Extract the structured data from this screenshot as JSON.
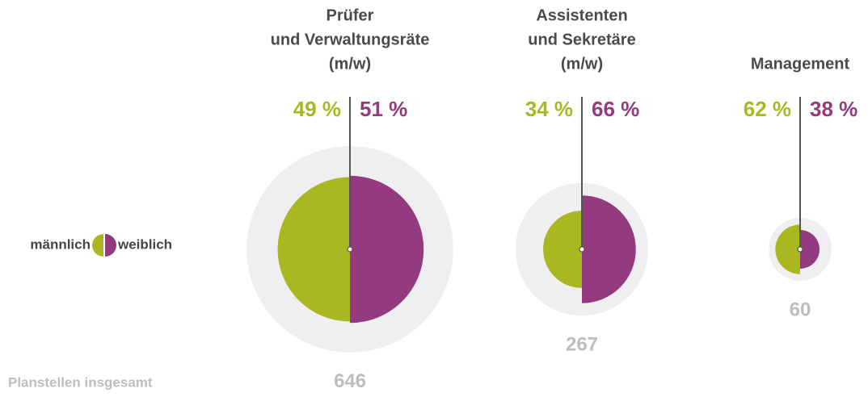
{
  "chart_data": {
    "type": "proportional-half-circles",
    "categories": [
      [
        "Prüfer",
        "und Verwaltungsräte",
        "(m/w)"
      ],
      [
        "Assistenten",
        "und Sekretäre",
        "(m/w)"
      ],
      [
        "Management"
      ]
    ],
    "series": [
      {
        "name": "männlich",
        "color": "#a9b821",
        "values": [
          49,
          34,
          62
        ],
        "value_labels": [
          "49 %",
          "34 %",
          "62 %"
        ]
      },
      {
        "name": "weiblich",
        "color": "#943a7f",
        "values": [
          51,
          66,
          38
        ],
        "value_labels": [
          "51 %",
          "66 %",
          "38 %"
        ]
      }
    ],
    "totals": [
      646,
      267,
      60
    ],
    "totals_label": "Planstellen insgesamt",
    "total_color": "#bdbdbd",
    "ring_color": "#efeff1"
  }
}
